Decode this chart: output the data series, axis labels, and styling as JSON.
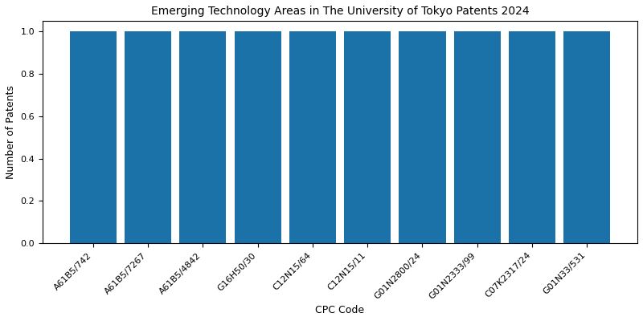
{
  "title": "Emerging Technology Areas in The University of Tokyo Patents 2024",
  "xlabel": "CPC Code",
  "ylabel": "Number of Patents",
  "categories": [
    "A61B5/742",
    "A61B5/7267",
    "A61B5/4842",
    "G16H50/30",
    "C12N15/64",
    "C12N15/11",
    "G01N2800/24",
    "G01N2333/99",
    "C07K2317/24",
    "G01N33/531"
  ],
  "values": [
    1,
    1,
    1,
    1,
    1,
    1,
    1,
    1,
    1,
    1
  ],
  "bar_color": "#1a72a8",
  "bar_width": 0.85,
  "ylim": [
    0,
    1.05
  ],
  "yticks": [
    0.0,
    0.2,
    0.4,
    0.6,
    0.8,
    1.0
  ],
  "title_fontsize": 10,
  "label_fontsize": 9,
  "tick_fontsize": 8,
  "figsize": [
    8.0,
    4.0
  ],
  "dpi": 100
}
